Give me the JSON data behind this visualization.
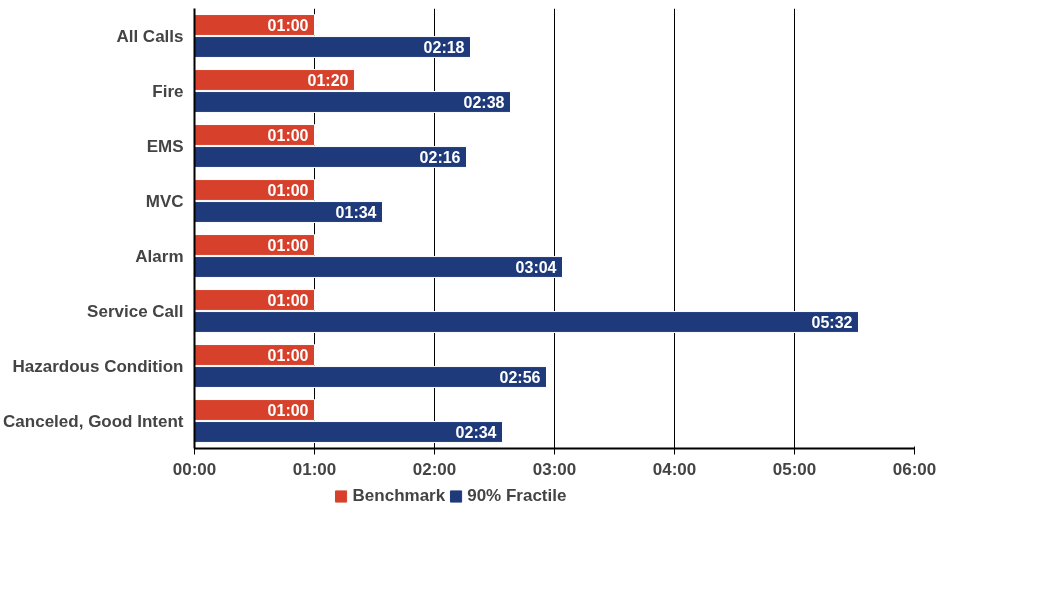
{
  "chart_data": {
    "type": "bar",
    "orientation": "horizontal",
    "categories": [
      "All Calls",
      "Fire",
      "EMS",
      "MVC",
      "Alarm",
      "Service Call",
      "Hazardous Condition",
      "Canceled, Good Intent"
    ],
    "series": [
      {
        "name": "Benchmark",
        "color": "#d7402a",
        "values": [
          1,
          1.3333,
          1,
          1,
          1,
          1,
          1,
          1
        ],
        "value_labels": [
          "01:00",
          "01:20",
          "01:00",
          "01:00",
          "01:00",
          "01:00",
          "01:00",
          "01:00"
        ]
      },
      {
        "name": "90% Fractile",
        "color": "#1f3a7a",
        "values": [
          2.3,
          2.6333,
          2.2667,
          1.5667,
          3.0667,
          5.5333,
          2.9333,
          2.5667
        ],
        "value_labels": [
          "02:18",
          "02:38",
          "02:16",
          "01:34",
          "03:04",
          "05:32",
          "02:56",
          "02:34"
        ]
      }
    ],
    "xlim": [
      0,
      6
    ],
    "xticks": [
      {
        "value": 0,
        "label": "00:00"
      },
      {
        "value": 1,
        "label": "01:00"
      },
      {
        "value": 2,
        "label": "02:00"
      },
      {
        "value": 3,
        "label": "03:00"
      },
      {
        "value": 4,
        "label": "04:00"
      },
      {
        "value": 5,
        "label": "05:00"
      },
      {
        "value": 6,
        "label": "06:00"
      }
    ],
    "grid": "x",
    "legend": "bottom"
  }
}
